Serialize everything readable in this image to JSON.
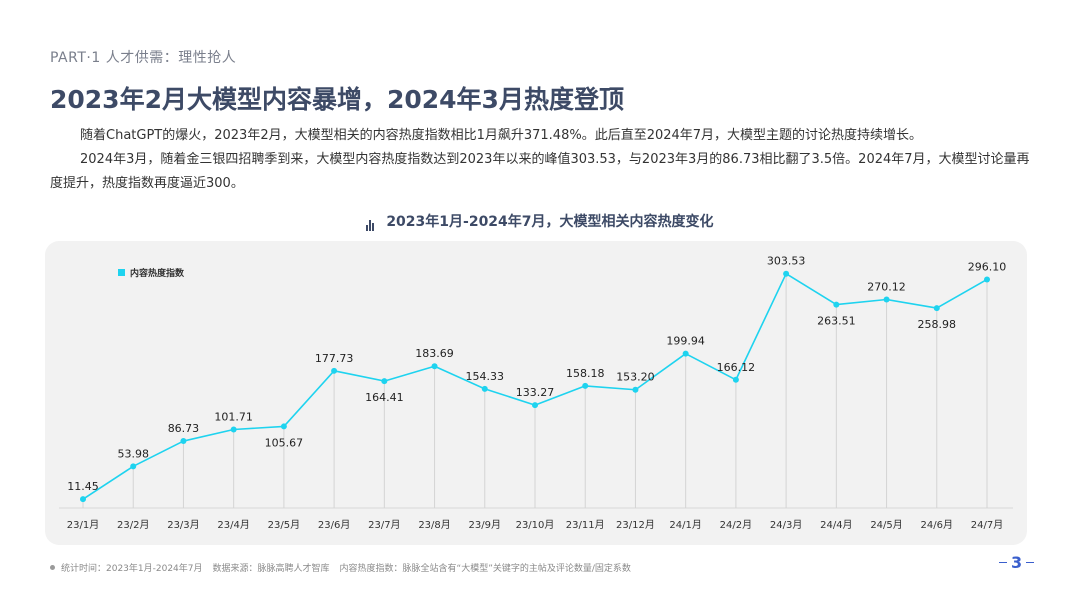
{
  "header": {
    "section_label": "PART·1  人才供需：理性抢人",
    "headline": "2023年2月大模型内容暴增，2024年3月热度登顶"
  },
  "body": {
    "paragraph_1": "随着ChatGPT的爆火，2023年2月，大模型相关的内容热度指数相比1月飙升371.48%。此后直至2024年7月，大模型主题的讨论热度持续增长。",
    "paragraph_2": "2024年3月，随着金三银四招聘季到来，大模型内容热度指数达到2023年以来的峰值303.53，与2023年3月的86.73相比翻了3.5倍。2024年7月，大模型讨论量再度提升，热度指数再度逼近300。"
  },
  "chart_title": "2023年1月-2024年7月，大模型相关内容热度变化",
  "chart_data": {
    "type": "line",
    "title": "2023年1月-2024年7月，大模型相关内容热度变化",
    "categories": [
      "23/1月",
      "23/2月",
      "23/3月",
      "23/4月",
      "23/5月",
      "23/6月",
      "23/7月",
      "23/8月",
      "23/9月",
      "23/10月",
      "23/11月",
      "23/12月",
      "24/1月",
      "24/2月",
      "24/3月",
      "24/4月",
      "24/5月",
      "24/6月",
      "24/7月"
    ],
    "series": [
      {
        "name": "内容热度指数",
        "color": "#1ed3ef",
        "values": [
          11.45,
          53.98,
          86.73,
          101.71,
          105.67,
          177.73,
          164.41,
          183.69,
          154.33,
          133.27,
          158.18,
          153.2,
          199.94,
          166.12,
          303.53,
          263.51,
          270.12,
          258.98,
          296.1
        ],
        "labels": [
          "11.45",
          "53.98",
          "86.73",
          "101.71",
          "105.67",
          "177.73",
          "164.41",
          "183.69",
          "154.33",
          "133.27",
          "158.18",
          "153.20",
          "199.94",
          "166.12",
          "303.53",
          "263.51",
          "270.12",
          "258.98",
          "296.10"
        ],
        "label_below": [
          false,
          false,
          false,
          false,
          true,
          false,
          true,
          false,
          false,
          false,
          false,
          false,
          false,
          false,
          false,
          true,
          false,
          true,
          false
        ]
      }
    ],
    "ylim": [
      0,
      320
    ],
    "grid": "vertical-drop-lines",
    "legend_position": "top-left"
  },
  "footer": {
    "stat_period": "统计时间：2023年1月-2024年7月",
    "data_source": "数据来源：脉脉高聘人才智库",
    "index_definition": "内容热度指数：脉脉全站含有“大模型”关键字的主帖及评论数量/固定系数"
  },
  "page_number": "3"
}
